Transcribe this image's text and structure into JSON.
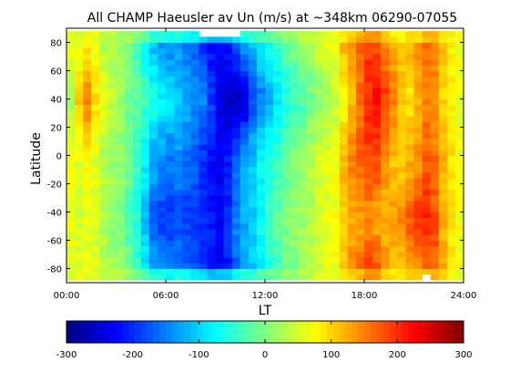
{
  "chart_data": {
    "type": "heatmap",
    "title": "All CHAMP Haeusler av Un (m/s) at ~348km 06290-07055",
    "xlabel": "LT",
    "ylabel": "Latitude",
    "xlim": [
      0,
      24
    ],
    "ylim": [
      -90,
      90
    ],
    "x_ticks": [
      0,
      6,
      12,
      18,
      24
    ],
    "x_tick_labels": [
      "00:00",
      "06:00",
      "12:00",
      "18:00",
      "24:00"
    ],
    "y_ticks": [
      -80,
      -60,
      -40,
      -20,
      0,
      20,
      40,
      60,
      80
    ],
    "y_tick_labels": [
      "-80",
      "-60",
      "-40",
      "-20",
      "0",
      "20",
      "40",
      "60",
      "80"
    ],
    "colorbar": {
      "range": [
        -300,
        300
      ],
      "ticks": [
        -300,
        -200,
        -100,
        0,
        100,
        200,
        300
      ],
      "tick_labels": [
        "-300",
        "-200",
        "-100",
        "0",
        "100",
        "200",
        "300"
      ],
      "colormap": "jet"
    },
    "grid": false,
    "lt_bin_hours": 0.5,
    "lat_bin_degrees": 4,
    "lat_data_range": [
      -88,
      88
    ],
    "missing_lt_at_north_edge": [
      [
        8.0,
        10.5
      ]
    ],
    "missing_lt_at_south_edge": [
      [
        21.5,
        22.0
      ]
    ],
    "profile_lt_hours": [
      0,
      0.5,
      1,
      1.5,
      2,
      2.5,
      3,
      3.5,
      4,
      4.5,
      5,
      5.5,
      6,
      6.5,
      7,
      7.5,
      8,
      8.5,
      9,
      9.5,
      10,
      10.5,
      11,
      11.5,
      12,
      12.5,
      13,
      13.5,
      14,
      14.5,
      15,
      15.5,
      16,
      16.5,
      17,
      17.5,
      18,
      18.5,
      19,
      19.5,
      20,
      20.5,
      21,
      21.5,
      22,
      22.5,
      23,
      23.5
    ],
    "profile_mean_un": [
      70,
      60,
      75,
      60,
      30,
      20,
      10,
      0,
      -40,
      -80,
      -120,
      -140,
      -150,
      -140,
      -160,
      -170,
      -200,
      -220,
      -230,
      -210,
      -170,
      -130,
      -110,
      -80,
      -60,
      -40,
      -20,
      0,
      10,
      30,
      50,
      60,
      70,
      120,
      150,
      170,
      190,
      180,
      140,
      110,
      100,
      120,
      140,
      170,
      160,
      120,
      90,
      70
    ],
    "north_peak_un": [
      20,
      100,
      150,
      90,
      60,
      40,
      20,
      -10,
      -20,
      -40,
      -60,
      -80,
      -90,
      -110,
      -120,
      -140,
      -150,
      -190,
      -240,
      -260,
      -260,
      -240,
      -180,
      -150,
      -120,
      -90,
      -60,
      -40,
      -30,
      -10,
      10,
      20,
      40,
      70,
      120,
      160,
      200,
      220,
      190,
      150,
      110,
      90,
      120,
      150,
      130,
      100,
      80,
      60
    ],
    "south_peak_un": [
      60,
      50,
      60,
      50,
      30,
      10,
      0,
      -30,
      -60,
      -110,
      -170,
      -190,
      -190,
      -180,
      -190,
      -200,
      -200,
      -210,
      -230,
      -200,
      -150,
      -120,
      -100,
      -70,
      -40,
      -20,
      0,
      10,
      20,
      30,
      50,
      60,
      70,
      100,
      120,
      130,
      140,
      130,
      120,
      130,
      150,
      170,
      190,
      200,
      180,
      120,
      90,
      70
    ]
  }
}
